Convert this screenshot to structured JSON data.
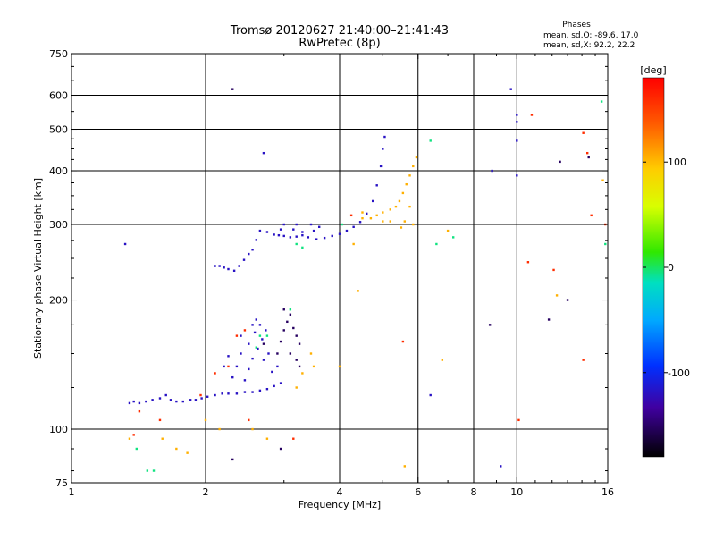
{
  "chart_data": {
    "type": "scatter",
    "title": "Tromsø 20120627 21:40:00–21:41:43",
    "subtitle": "RwPretec (8p)",
    "xlabel": "Frequency [MHz]",
    "ylabel": "Stationary phase Virtual Height [km]",
    "x_scale": "log",
    "y_scale": "log",
    "xlim": [
      1,
      16
    ],
    "ylim": [
      75,
      750
    ],
    "x_ticks": [
      1,
      2,
      4,
      6,
      8,
      10,
      16
    ],
    "x_tick_labels": [
      "1",
      "2",
      "4",
      "6",
      "8",
      "10",
      "16"
    ],
    "x_grid": [
      2,
      4,
      6,
      8,
      10
    ],
    "y_ticks": [
      75,
      100,
      200,
      300,
      400,
      500,
      600,
      750
    ],
    "y_tick_labels": [
      "75",
      "100",
      "200",
      "300",
      "400",
      "500",
      "600",
      "750"
    ],
    "y_grid": [
      100,
      200,
      300,
      400,
      500,
      600
    ],
    "grid": true,
    "stats": {
      "heading": "Phases",
      "line1": "mean, sd,O: -89.6, 17.0",
      "line2": "mean, sd,X:  92.2, 22.2"
    },
    "colorbar": {
      "label": "[deg]",
      "min": -180,
      "max": 180,
      "tick_values": [
        100,
        0,
        -100
      ],
      "tick_labels": [
        "100",
        "0",
        "-100"
      ]
    },
    "series": [
      {
        "color_value": -115,
        "points": [
          [
            1.35,
            115
          ],
          [
            1.38,
            116
          ],
          [
            1.42,
            115
          ],
          [
            1.47,
            116
          ],
          [
            1.52,
            117
          ],
          [
            1.58,
            118
          ],
          [
            1.63,
            120
          ],
          [
            1.67,
            117
          ],
          [
            1.72,
            116
          ],
          [
            1.78,
            116
          ],
          [
            1.85,
            117
          ],
          [
            1.9,
            117
          ],
          [
            1.96,
            118
          ],
          [
            2.02,
            119
          ],
          [
            2.1,
            120
          ],
          [
            2.18,
            121
          ],
          [
            2.25,
            121
          ],
          [
            2.35,
            121
          ],
          [
            2.45,
            122
          ],
          [
            2.55,
            122
          ],
          [
            2.65,
            123
          ],
          [
            2.75,
            124
          ],
          [
            2.85,
            126
          ],
          [
            2.95,
            128
          ],
          [
            2.45,
            130
          ],
          [
            2.5,
            138
          ],
          [
            2.55,
            146
          ],
          [
            2.62,
            154
          ],
          [
            2.68,
            162
          ],
          [
            2.73,
            170
          ],
          [
            2.6,
            180
          ],
          [
            2.65,
            175
          ],
          [
            2.4,
            150
          ],
          [
            2.35,
            140
          ],
          [
            2.3,
            132
          ],
          [
            2.5,
            158
          ],
          [
            2.58,
            168
          ],
          [
            2.7,
            145
          ],
          [
            2.77,
            150
          ],
          [
            2.82,
            136
          ],
          [
            2.9,
            140
          ],
          [
            2.4,
            165
          ],
          [
            2.55,
            175
          ],
          [
            2.2,
            140
          ],
          [
            2.25,
            148
          ],
          [
            2.1,
            240
          ],
          [
            2.15,
            240
          ],
          [
            2.2,
            238
          ],
          [
            2.25,
            236
          ],
          [
            2.32,
            234
          ],
          [
            2.38,
            240
          ],
          [
            2.44,
            248
          ],
          [
            2.5,
            256
          ],
          [
            2.55,
            262
          ],
          [
            2.6,
            276
          ],
          [
            2.65,
            290
          ],
          [
            2.75,
            288
          ],
          [
            2.85,
            284
          ],
          [
            2.92,
            283
          ],
          [
            3.0,
            282
          ],
          [
            3.1,
            280
          ],
          [
            3.2,
            281
          ],
          [
            3.3,
            283
          ],
          [
            3.4,
            280
          ],
          [
            3.55,
            277
          ],
          [
            3.7,
            279
          ],
          [
            3.85,
            282
          ],
          [
            4.0,
            285
          ],
          [
            4.15,
            290
          ],
          [
            4.3,
            296
          ],
          [
            4.45,
            304
          ],
          [
            4.6,
            318
          ],
          [
            4.75,
            340
          ],
          [
            4.85,
            370
          ],
          [
            4.95,
            410
          ],
          [
            5.0,
            450
          ],
          [
            5.05,
            480
          ],
          [
            3.0,
            300
          ],
          [
            3.2,
            300
          ],
          [
            3.45,
            300
          ],
          [
            3.6,
            296
          ],
          [
            2.95,
            292
          ],
          [
            3.15,
            292
          ],
          [
            3.5,
            290
          ],
          [
            3.3,
            288
          ],
          [
            1.32,
            270
          ],
          [
            2.7,
            440
          ],
          [
            9.2,
            82
          ],
          [
            8.8,
            400
          ],
          [
            10.0,
            540
          ],
          [
            10.0,
            520
          ],
          [
            10.0,
            470
          ],
          [
            10.0,
            390
          ],
          [
            9.7,
            620
          ],
          [
            6.4,
            120
          ]
        ]
      },
      {
        "color_value": -150,
        "points": [
          [
            2.9,
            150
          ],
          [
            2.95,
            160
          ],
          [
            3.0,
            170
          ],
          [
            3.05,
            178
          ],
          [
            3.1,
            185
          ],
          [
            3.15,
            172
          ],
          [
            3.2,
            165
          ],
          [
            3.25,
            158
          ],
          [
            3.1,
            150
          ],
          [
            3.2,
            145
          ],
          [
            3.25,
            140
          ],
          [
            3.0,
            190
          ],
          [
            2.7,
            158
          ],
          [
            2.3,
            620
          ],
          [
            2.3,
            85
          ],
          [
            2.95,
            90
          ],
          [
            12.5,
            420
          ],
          [
            14.5,
            430
          ],
          [
            13.0,
            200
          ],
          [
            8.7,
            175
          ],
          [
            11.8,
            180
          ]
        ]
      },
      {
        "color_value": -5,
        "points": [
          [
            6.4,
            470
          ],
          [
            6.6,
            270
          ],
          [
            7.2,
            280
          ],
          [
            15.5,
            580
          ],
          [
            15.8,
            270
          ],
          [
            1.48,
            80
          ],
          [
            1.53,
            80
          ],
          [
            2.6,
            155
          ],
          [
            2.65,
            165
          ],
          [
            2.75,
            165
          ],
          [
            1.4,
            90
          ],
          [
            3.2,
            270
          ],
          [
            3.3,
            265
          ],
          [
            4.05,
            300
          ],
          [
            3.1,
            190
          ]
        ]
      },
      {
        "color_value": 110,
        "points": [
          [
            4.5,
            310
          ],
          [
            4.7,
            310
          ],
          [
            4.85,
            315
          ],
          [
            5.0,
            320
          ],
          [
            5.2,
            325
          ],
          [
            5.35,
            330
          ],
          [
            5.45,
            340
          ],
          [
            5.55,
            355
          ],
          [
            5.65,
            372
          ],
          [
            5.75,
            390
          ],
          [
            5.85,
            410
          ],
          [
            5.95,
            430
          ],
          [
            5.75,
            330
          ],
          [
            5.85,
            300
          ],
          [
            5.6,
            305
          ],
          [
            5.5,
            295
          ],
          [
            5.0,
            305
          ],
          [
            5.2,
            305
          ],
          [
            4.3,
            270
          ],
          [
            4.5,
            320
          ],
          [
            3.2,
            125
          ],
          [
            3.3,
            135
          ],
          [
            3.45,
            150
          ],
          [
            3.5,
            140
          ],
          [
            1.35,
            95
          ],
          [
            1.6,
            95
          ],
          [
            1.72,
            90
          ],
          [
            1.82,
            88
          ],
          [
            2.0,
            105
          ],
          [
            2.15,
            100
          ],
          [
            2.55,
            100
          ],
          [
            2.75,
            95
          ],
          [
            4.0,
            140
          ],
          [
            4.4,
            210
          ],
          [
            5.6,
            82
          ],
          [
            6.8,
            145
          ],
          [
            12.3,
            205
          ],
          [
            15.6,
            380
          ],
          [
            7.0,
            290
          ]
        ]
      },
      {
        "color_value": 160,
        "points": [
          [
            1.38,
            97
          ],
          [
            1.42,
            110
          ],
          [
            1.58,
            105
          ],
          [
            1.95,
            120
          ],
          [
            2.1,
            135
          ],
          [
            2.25,
            140
          ],
          [
            2.35,
            165
          ],
          [
            2.45,
            170
          ],
          [
            2.5,
            105
          ],
          [
            3.15,
            95
          ],
          [
            5.55,
            160
          ],
          [
            10.8,
            540
          ],
          [
            10.6,
            245
          ],
          [
            12.1,
            235
          ],
          [
            14.1,
            490
          ],
          [
            14.4,
            440
          ],
          [
            14.7,
            315
          ],
          [
            14.1,
            145
          ],
          [
            15.8,
            300
          ],
          [
            4.25,
            315
          ],
          [
            10.1,
            105
          ]
        ]
      }
    ]
  }
}
